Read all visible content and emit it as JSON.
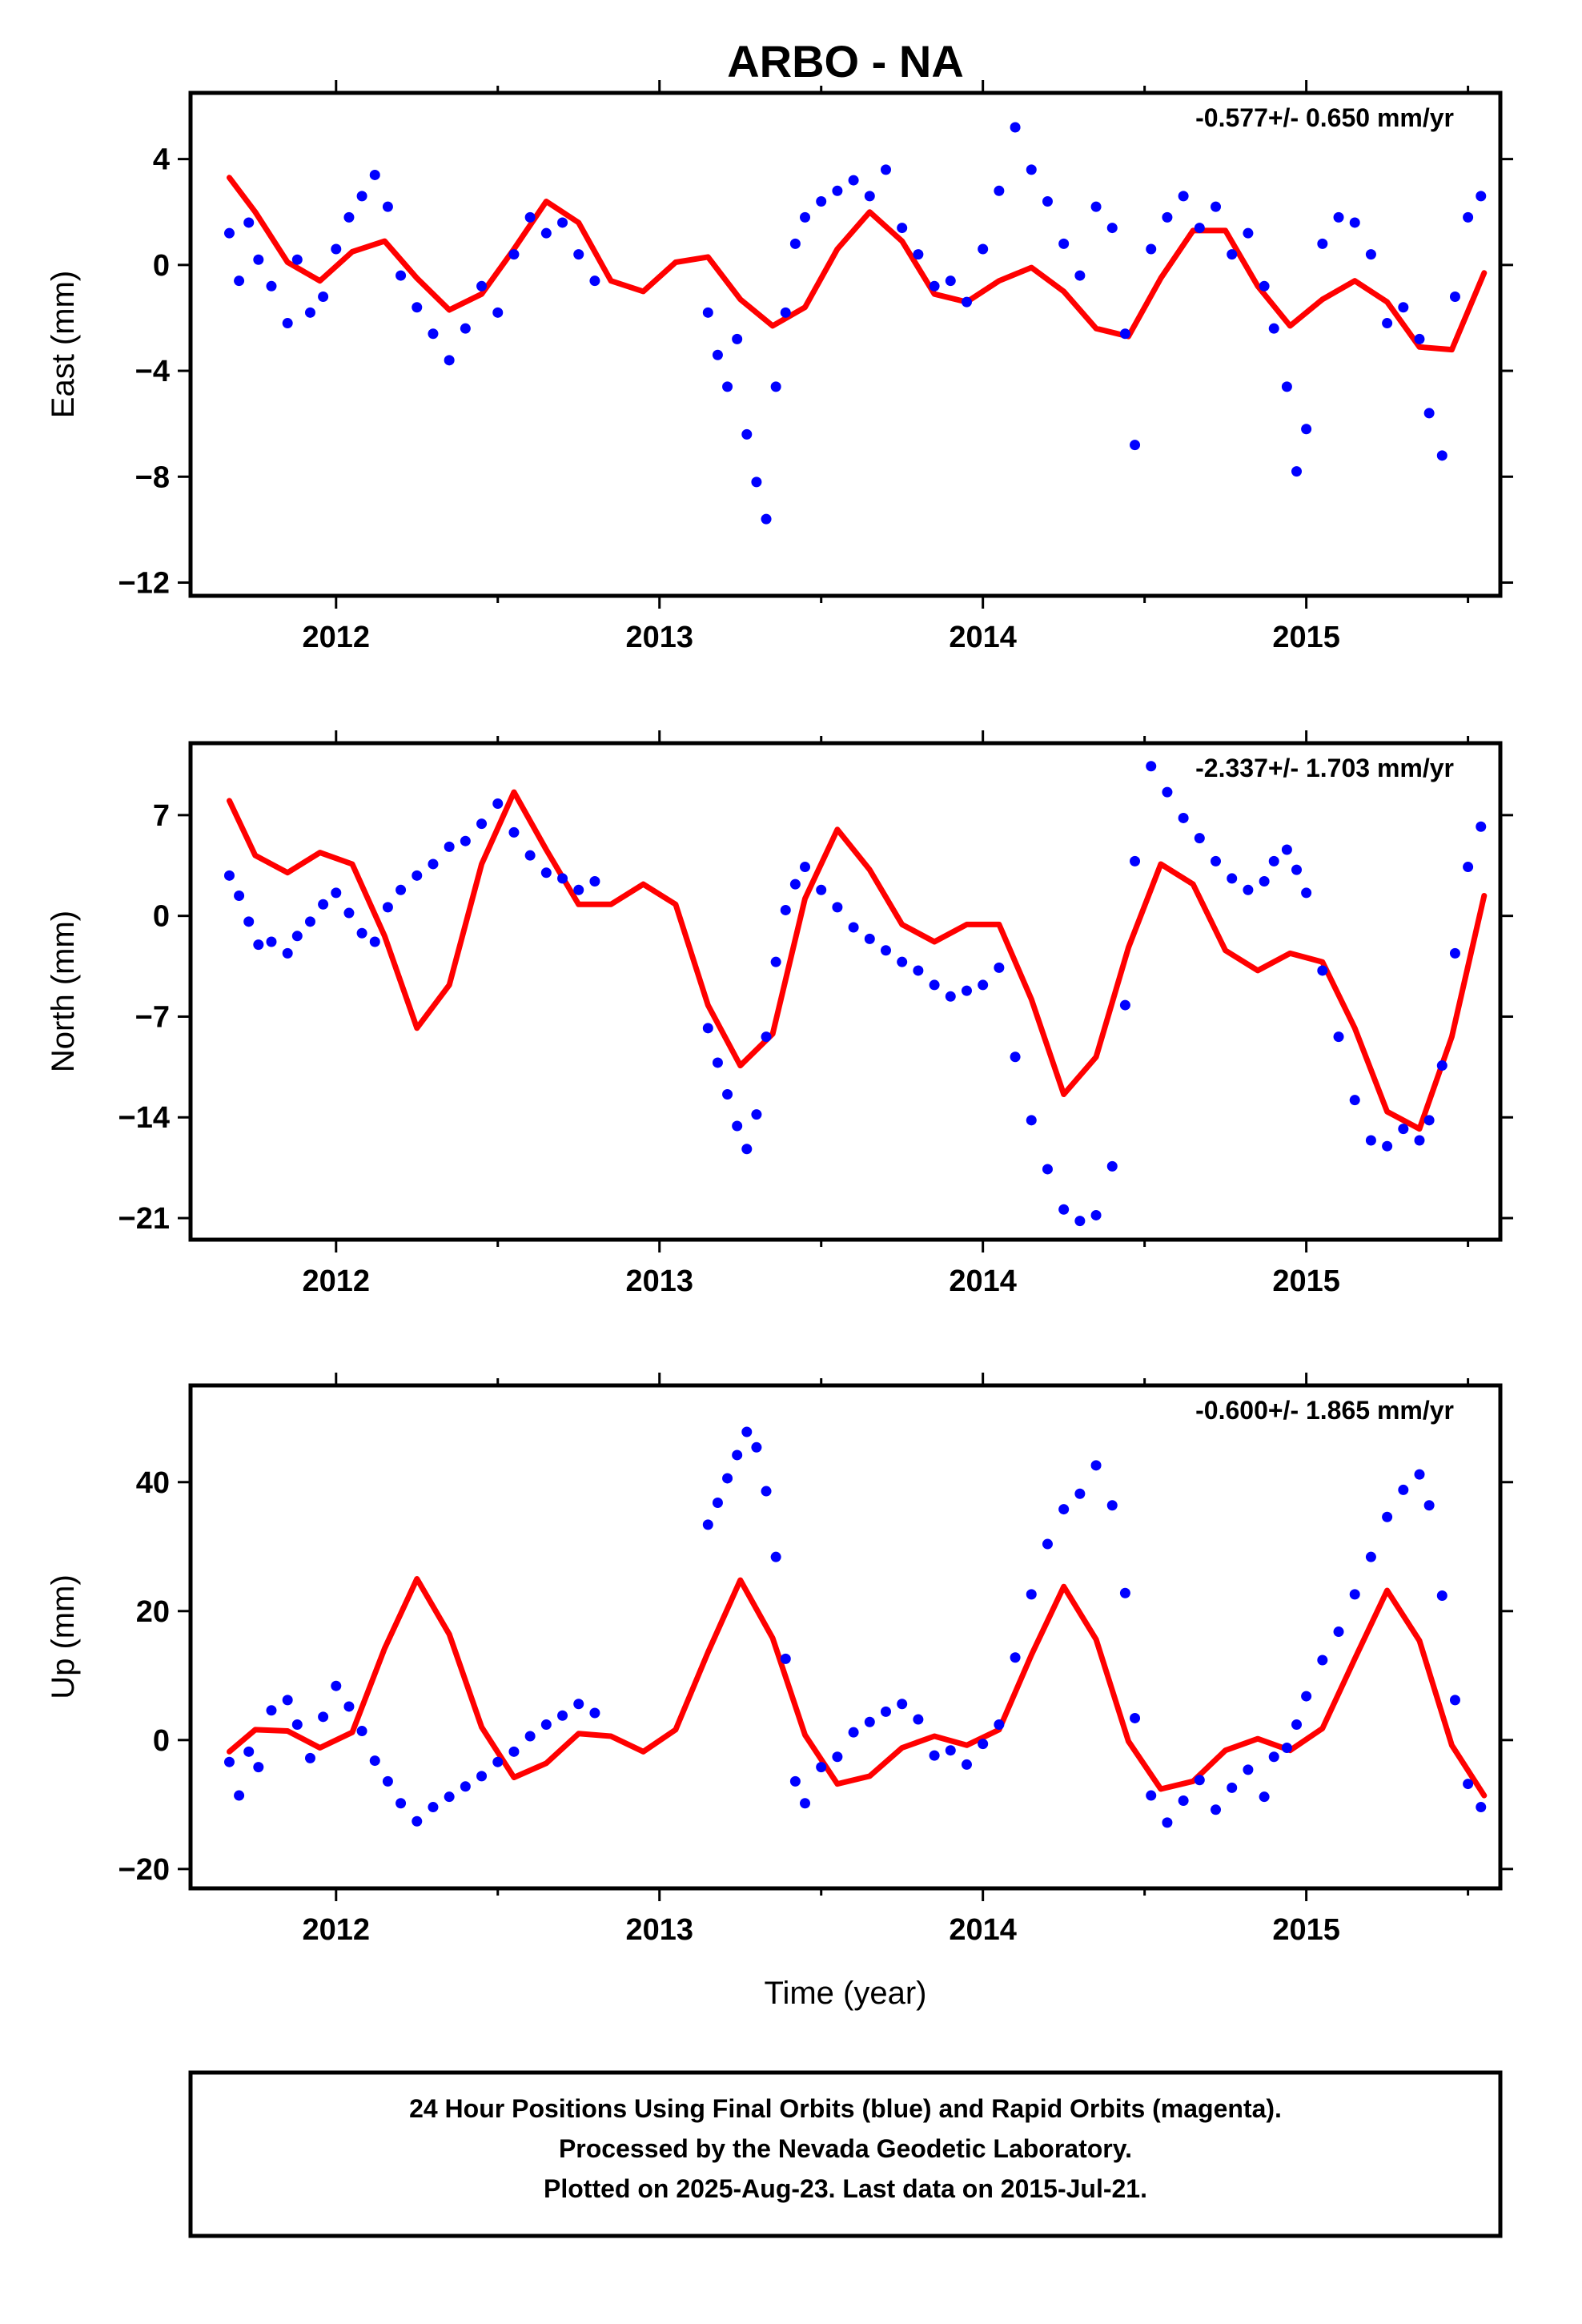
{
  "title": "ARBO - NA",
  "xlabel": "Time (year)",
  "caption": {
    "line1": "24 Hour Positions Using Final Orbits (blue) and Rapid Orbits (magenta).",
    "line2": "Processed by the Nevada Geodetic Laboratory.",
    "line3": "Plotted on 2025-Aug-23. Last data on 2015-Jul-21."
  },
  "colors": {
    "points": "#0000ff",
    "model": "#ff0000",
    "frame": "#000000"
  },
  "chart_data": [
    {
      "type": "scatter",
      "component": "east",
      "ylabel": "East (mm)",
      "rate_text": "-0.577+/- 0.650 mm/yr",
      "xlim": [
        2011.55,
        2015.6
      ],
      "ylim": [
        -12.5,
        6.5
      ],
      "xticks": [
        2012,
        2013,
        2014,
        2015
      ],
      "yticks": [
        -12,
        -8,
        -4,
        0,
        4
      ],
      "series": [
        {
          "marker": "dot",
          "x": [
            2011.67,
            2011.7,
            2011.73,
            2011.76,
            2011.8,
            2011.85,
            2011.88,
            2011.92,
            2011.96,
            2012.0,
            2012.04,
            2012.08,
            2012.12,
            2012.16,
            2012.2,
            2012.25,
            2012.3,
            2012.35,
            2012.4,
            2012.45,
            2012.5,
            2012.55,
            2012.6,
            2012.65,
            2012.7,
            2012.75,
            2012.8,
            2013.15,
            2013.18,
            2013.21,
            2013.24,
            2013.27,
            2013.3,
            2013.33,
            2013.36,
            2013.39,
            2013.42,
            2013.45,
            2013.5,
            2013.55,
            2013.6,
            2013.65,
            2013.7,
            2013.75,
            2013.8,
            2013.85,
            2013.9,
            2013.95,
            2014.0,
            2014.05,
            2014.1,
            2014.15,
            2014.2,
            2014.25,
            2014.3,
            2014.35,
            2014.4,
            2014.44,
            2014.47,
            2014.52,
            2014.57,
            2014.62,
            2014.67,
            2014.72,
            2014.77,
            2014.82,
            2014.87,
            2014.9,
            2014.94,
            2014.97,
            2015.0,
            2015.05,
            2015.1,
            2015.15,
            2015.2,
            2015.25,
            2015.3,
            2015.35,
            2015.38,
            2015.42,
            2015.46,
            2015.5,
            2015.54
          ],
          "y": [
            1.2,
            -0.6,
            1.6,
            0.2,
            -0.8,
            -2.2,
            0.2,
            -1.8,
            -1.2,
            0.6,
            1.8,
            2.6,
            3.4,
            2.2,
            -0.4,
            -1.6,
            -2.6,
            -3.6,
            -2.4,
            -0.8,
            -1.8,
            0.4,
            1.8,
            1.2,
            1.6,
            0.4,
            -0.6,
            -1.8,
            -3.4,
            -4.6,
            -2.8,
            -6.4,
            -8.2,
            -9.6,
            -4.6,
            -1.8,
            0.8,
            1.8,
            2.4,
            2.8,
            3.2,
            2.6,
            3.6,
            1.4,
            0.4,
            -0.8,
            -0.6,
            -1.4,
            0.6,
            2.8,
            5.2,
            3.6,
            2.4,
            0.8,
            -0.4,
            2.2,
            1.4,
            -2.6,
            -6.8,
            0.6,
            1.8,
            2.6,
            1.4,
            2.2,
            0.4,
            1.2,
            -0.8,
            -2.4,
            -4.6,
            -7.8,
            -6.2,
            0.8,
            1.8,
            1.6,
            0.4,
            -2.2,
            -1.6,
            -2.8,
            -5.6,
            -7.2,
            -1.2,
            1.8,
            2.6
          ]
        },
        {
          "marker": "line",
          "x": [
            2011.67,
            2011.75,
            2011.85,
            2011.95,
            2012.05,
            2012.15,
            2012.25,
            2012.35,
            2012.45,
            2012.55,
            2012.65,
            2012.75,
            2012.85,
            2012.95,
            2013.05,
            2013.15,
            2013.25,
            2013.35,
            2013.45,
            2013.55,
            2013.65,
            2013.75,
            2013.85,
            2013.95,
            2014.05,
            2014.15,
            2014.25,
            2014.35,
            2014.45,
            2014.55,
            2014.65,
            2014.75,
            2014.85,
            2014.95,
            2015.05,
            2015.15,
            2015.25,
            2015.35,
            2015.45,
            2015.55
          ],
          "y": [
            3.3,
            2.0,
            0.1,
            -0.6,
            0.5,
            0.9,
            -0.5,
            -1.7,
            -1.1,
            0.6,
            2.4,
            1.6,
            -0.6,
            -1.0,
            0.1,
            0.3,
            -1.3,
            -2.3,
            -1.6,
            0.6,
            2.0,
            0.9,
            -1.1,
            -1.4,
            -0.6,
            -0.1,
            -1.0,
            -2.4,
            -2.7,
            -0.5,
            1.3,
            1.3,
            -0.8,
            -2.3,
            -1.3,
            -0.6,
            -1.4,
            -3.1,
            -3.2,
            -0.3
          ]
        }
      ]
    },
    {
      "type": "scatter",
      "component": "north",
      "ylabel": "North (mm)",
      "rate_text": "-2.337+/- 1.703 mm/yr",
      "xlim": [
        2011.55,
        2015.6
      ],
      "ylim": [
        -22.5,
        12.0
      ],
      "xticks": [
        2012,
        2013,
        2014,
        2015
      ],
      "yticks": [
        -21,
        -14,
        -7,
        0,
        7
      ],
      "series": [
        {
          "marker": "dot",
          "x": [
            2011.67,
            2011.7,
            2011.73,
            2011.76,
            2011.8,
            2011.85,
            2011.88,
            2011.92,
            2011.96,
            2012.0,
            2012.04,
            2012.08,
            2012.12,
            2012.16,
            2012.2,
            2012.25,
            2012.3,
            2012.35,
            2012.4,
            2012.45,
            2012.5,
            2012.55,
            2012.6,
            2012.65,
            2012.7,
            2012.75,
            2012.8,
            2013.15,
            2013.18,
            2013.21,
            2013.24,
            2013.27,
            2013.3,
            2013.33,
            2013.36,
            2013.39,
            2013.42,
            2013.45,
            2013.5,
            2013.55,
            2013.6,
            2013.65,
            2013.7,
            2013.75,
            2013.8,
            2013.85,
            2013.9,
            2013.95,
            2014.0,
            2014.05,
            2014.1,
            2014.15,
            2014.2,
            2014.25,
            2014.3,
            2014.35,
            2014.4,
            2014.44,
            2014.47,
            2014.52,
            2014.57,
            2014.62,
            2014.67,
            2014.72,
            2014.77,
            2014.82,
            2014.87,
            2014.9,
            2014.94,
            2014.97,
            2015.0,
            2015.05,
            2015.1,
            2015.15,
            2015.2,
            2015.25,
            2015.3,
            2015.35,
            2015.38,
            2015.42,
            2015.46,
            2015.5,
            2015.54
          ],
          "y": [
            2.8,
            1.4,
            -0.4,
            -2.0,
            -1.8,
            -2.6,
            -1.4,
            -0.4,
            0.8,
            1.6,
            0.2,
            -1.2,
            -1.8,
            0.6,
            1.8,
            2.8,
            3.6,
            4.8,
            5.2,
            6.4,
            7.8,
            5.8,
            4.2,
            3.0,
            2.6,
            1.8,
            2.4,
            -7.8,
            -10.2,
            -12.4,
            -14.6,
            -16.2,
            -13.8,
            -8.4,
            -3.2,
            0.4,
            2.2,
            3.4,
            1.8,
            0.6,
            -0.8,
            -1.6,
            -2.4,
            -3.2,
            -3.8,
            -4.8,
            -5.6,
            -5.2,
            -4.8,
            -3.6,
            -9.8,
            -14.2,
            -17.6,
            -20.4,
            -21.2,
            -20.8,
            -17.4,
            -6.2,
            3.8,
            10.4,
            8.6,
            6.8,
            5.4,
            3.8,
            2.6,
            1.8,
            2.4,
            3.8,
            4.6,
            3.2,
            1.6,
            -3.8,
            -8.4,
            -12.8,
            -15.6,
            -16.0,
            -14.8,
            -15.6,
            -14.2,
            -10.4,
            -2.6,
            3.4,
            6.2
          ]
        },
        {
          "marker": "line",
          "x": [
            2011.67,
            2011.75,
            2011.85,
            2011.95,
            2012.05,
            2012.15,
            2012.25,
            2012.35,
            2012.45,
            2012.55,
            2012.65,
            2012.75,
            2012.85,
            2012.95,
            2013.05,
            2013.15,
            2013.25,
            2013.35,
            2013.45,
            2013.55,
            2013.65,
            2013.75,
            2013.85,
            2013.95,
            2014.05,
            2014.15,
            2014.25,
            2014.35,
            2014.45,
            2014.55,
            2014.65,
            2014.75,
            2014.85,
            2014.95,
            2015.05,
            2015.15,
            2015.25,
            2015.35,
            2015.45,
            2015.55
          ],
          "y": [
            8.0,
            4.2,
            3.0,
            4.4,
            3.6,
            -1.4,
            -7.8,
            -4.8,
            3.6,
            8.6,
            4.6,
            0.8,
            0.8,
            2.2,
            0.8,
            -6.2,
            -10.4,
            -8.2,
            1.2,
            6.0,
            3.2,
            -0.6,
            -1.8,
            -0.6,
            -0.6,
            -5.8,
            -12.4,
            -9.8,
            -2.2,
            3.6,
            2.2,
            -2.4,
            -3.8,
            -2.6,
            -3.2,
            -7.8,
            -13.6,
            -14.8,
            -8.4,
            1.4
          ]
        }
      ]
    },
    {
      "type": "scatter",
      "component": "up",
      "ylabel": "Up (mm)",
      "rate_text": "-0.600+/- 1.865 mm/yr",
      "xlim": [
        2011.55,
        2015.6
      ],
      "ylim": [
        -23,
        55
      ],
      "xticks": [
        2012,
        2013,
        2014,
        2015
      ],
      "yticks": [
        -20,
        0,
        20,
        40
      ],
      "series": [
        {
          "marker": "dot",
          "x": [
            2011.67,
            2011.7,
            2011.73,
            2011.76,
            2011.8,
            2011.85,
            2011.88,
            2011.92,
            2011.96,
            2012.0,
            2012.04,
            2012.08,
            2012.12,
            2012.16,
            2012.2,
            2012.25,
            2012.3,
            2012.35,
            2012.4,
            2012.45,
            2012.5,
            2012.55,
            2012.6,
            2012.65,
            2012.7,
            2012.75,
            2012.8,
            2013.15,
            2013.18,
            2013.21,
            2013.24,
            2013.27,
            2013.3,
            2013.33,
            2013.36,
            2013.39,
            2013.42,
            2013.45,
            2013.5,
            2013.55,
            2013.6,
            2013.65,
            2013.7,
            2013.75,
            2013.8,
            2013.85,
            2013.9,
            2013.95,
            2014.0,
            2014.05,
            2014.1,
            2014.15,
            2014.2,
            2014.25,
            2014.3,
            2014.35,
            2014.4,
            2014.44,
            2014.47,
            2014.52,
            2014.57,
            2014.62,
            2014.67,
            2014.72,
            2014.77,
            2014.82,
            2014.87,
            2014.9,
            2014.94,
            2014.97,
            2015.0,
            2015.05,
            2015.1,
            2015.15,
            2015.2,
            2015.25,
            2015.3,
            2015.35,
            2015.38,
            2015.42,
            2015.46,
            2015.5,
            2015.54
          ],
          "y": [
            -3.4,
            -8.6,
            -1.8,
            -4.2,
            4.6,
            6.2,
            2.4,
            -2.8,
            3.6,
            8.4,
            5.2,
            1.4,
            -3.2,
            -6.4,
            -9.8,
            -12.6,
            -10.4,
            -8.8,
            -7.2,
            -5.6,
            -3.4,
            -1.8,
            0.6,
            2.4,
            3.8,
            5.6,
            4.2,
            33.4,
            36.8,
            40.6,
            44.2,
            47.8,
            45.4,
            38.6,
            28.4,
            12.6,
            -6.4,
            -9.8,
            -4.2,
            -2.6,
            1.2,
            2.8,
            4.4,
            5.6,
            3.2,
            -2.4,
            -1.6,
            -3.8,
            -0.6,
            2.4,
            12.8,
            22.6,
            30.4,
            35.8,
            38.2,
            42.6,
            36.4,
            22.8,
            3.4,
            -8.6,
            -12.8,
            -9.4,
            -6.2,
            -10.8,
            -7.4,
            -4.6,
            -8.8,
            -2.6,
            -1.2,
            2.4,
            6.8,
            12.4,
            16.8,
            22.6,
            28.4,
            34.6,
            38.8,
            41.2,
            36.4,
            22.4,
            6.2,
            -6.8,
            -10.4
          ]
        },
        {
          "marker": "line",
          "x": [
            2011.67,
            2011.75,
            2011.85,
            2011.95,
            2012.05,
            2012.15,
            2012.25,
            2012.35,
            2012.45,
            2012.55,
            2012.65,
            2012.75,
            2012.85,
            2012.95,
            2013.05,
            2013.15,
            2013.25,
            2013.35,
            2013.45,
            2013.55,
            2013.65,
            2013.75,
            2013.85,
            2013.95,
            2014.05,
            2014.15,
            2014.25,
            2014.35,
            2014.45,
            2014.55,
            2014.65,
            2014.75,
            2014.85,
            2014.95,
            2015.05,
            2015.15,
            2015.25,
            2015.35,
            2015.45,
            2015.55
          ],
          "y": [
            -1.8,
            1.6,
            1.4,
            -1.2,
            1.2,
            14.2,
            25.0,
            16.4,
            2.0,
            -5.8,
            -3.6,
            1.0,
            0.6,
            -1.8,
            1.6,
            13.6,
            24.8,
            15.8,
            0.8,
            -6.8,
            -5.6,
            -1.2,
            0.6,
            -0.8,
            1.6,
            13.2,
            23.8,
            15.6,
            -0.2,
            -7.6,
            -6.4,
            -1.6,
            0.2,
            -1.6,
            1.8,
            12.6,
            23.2,
            15.4,
            -0.8,
            -8.6
          ]
        }
      ]
    }
  ]
}
